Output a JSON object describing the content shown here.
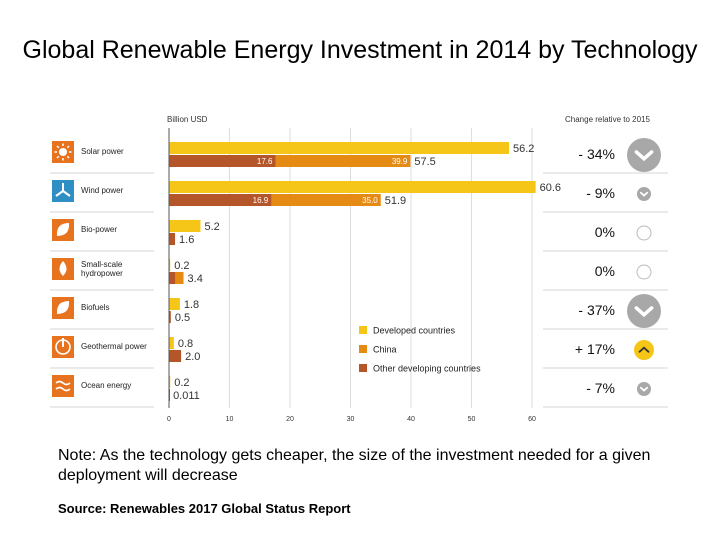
{
  "title": "Global Renewable Energy Investment in 2014 by Technology",
  "note": "Note: As the technology gets cheaper, the size of the investment needed for a given deployment will decrease",
  "source": "Source: Renewables 2017 Global Status Report",
  "colors": {
    "developed": "#f5c518",
    "china": "#e58a13",
    "other": "#b5562a",
    "icon_bg": "#e8731e",
    "icon_blue": "#2f8fc4",
    "gray": "#a8a8a8",
    "highlight": "#f5c518"
  },
  "chart_data": {
    "type": "bar",
    "orientation": "horizontal",
    "unit_label": "Billion USD",
    "change_header": "Change relative to 2015",
    "xlim": [
      0,
      60
    ],
    "xticks": [
      "0",
      "10",
      "20",
      "30",
      "40",
      "50",
      "60"
    ],
    "legend": [
      "Developed countries",
      "China",
      "Other developing countries"
    ],
    "legend_position": "bottom-right",
    "categories": [
      {
        "name": "Solar power",
        "icon": "sun-icon",
        "developed": 56.2,
        "china": 39.9,
        "other": 17.6,
        "developed_label": "56.2",
        "dev_total_label": "57.5",
        "china_label": "39.9",
        "other_label": "17.6",
        "change": "- 34%",
        "direction": "down",
        "emphasis": "large"
      },
      {
        "name": "Wind power",
        "icon": "wind-turbine-icon",
        "developed": 60.6,
        "china": 35.0,
        "other": 16.9,
        "developed_label": "60.6",
        "dev_total_label": "51.9",
        "china_label": "35.0",
        "other_label": "16.9",
        "change": "- 9%",
        "direction": "down",
        "emphasis": "small"
      },
      {
        "name": "Bio-power",
        "icon": "leaf-icon",
        "developed": 5.2,
        "china": 0.6,
        "other": 1.0,
        "developed_label": "5.2",
        "dev_total_label": "1.6",
        "change": "0%",
        "direction": "none",
        "emphasis": "small"
      },
      {
        "name": "Small-scale hydropower",
        "icon": "water-drop-icon",
        "developed": 0.2,
        "china": 2.4,
        "other": 1.0,
        "developed_label": "0.2",
        "dev_total_label": "3.4",
        "change": "0%",
        "direction": "none",
        "emphasis": "small"
      },
      {
        "name": "Biofuels",
        "icon": "leaf-icon",
        "developed": 1.8,
        "china": 0.2,
        "other": 0.3,
        "developed_label": "1.8",
        "dev_total_label": "0.5",
        "change": "- 37%",
        "direction": "down",
        "emphasis": "large"
      },
      {
        "name": "Geothermal power",
        "icon": "geothermal-icon",
        "developed": 0.8,
        "china": 0.0,
        "other": 2.0,
        "developed_label": "0.8",
        "dev_total_label": "2.0",
        "change": "+ 17%",
        "direction": "up",
        "emphasis": "highlight"
      },
      {
        "name": "Ocean energy",
        "icon": "waves-icon",
        "developed": 0.2,
        "china": 0.0,
        "other": 0.011,
        "developed_label": "0.2",
        "dev_total_label": "0.011",
        "change": "- 7%",
        "direction": "down",
        "emphasis": "small"
      }
    ]
  }
}
